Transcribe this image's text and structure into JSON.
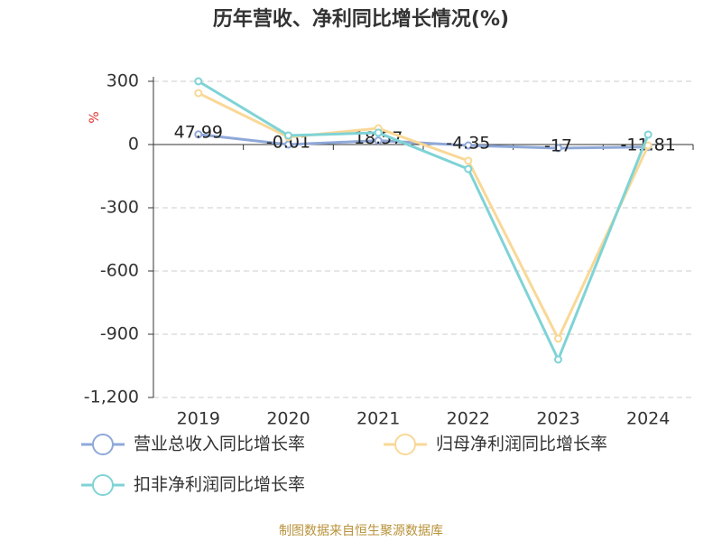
{
  "chart_data": {
    "type": "line",
    "title": "历年营收、净利同比增长情况(%)",
    "y_label": "%",
    "categories": [
      "2019",
      "2020",
      "2021",
      "2022",
      "2023",
      "2024"
    ],
    "series": [
      {
        "name": "营业总收入同比增长率",
        "color": "#8fa8d8",
        "values": [
          47.99,
          -0.01,
          18.57,
          -4.35,
          -17,
          -11.81
        ],
        "show_labels": true
      },
      {
        "name": "归母净利润同比增长率",
        "color": "#f9d897",
        "values": [
          244,
          35,
          77,
          -77,
          -921,
          -5
        ]
      },
      {
        "name": "扣非净利润同比增长率",
        "color": "#7fd3d6",
        "values": [
          300,
          43,
          56,
          -116,
          -1020,
          47
        ]
      }
    ],
    "ylim": [
      -1200,
      300
    ],
    "yticks": [
      300,
      0,
      -300,
      -600,
      -900,
      {
        "value": -1200,
        "label": "-1,200"
      }
    ],
    "grid": true,
    "source": "制图数据来自恒生聚源数据库"
  }
}
